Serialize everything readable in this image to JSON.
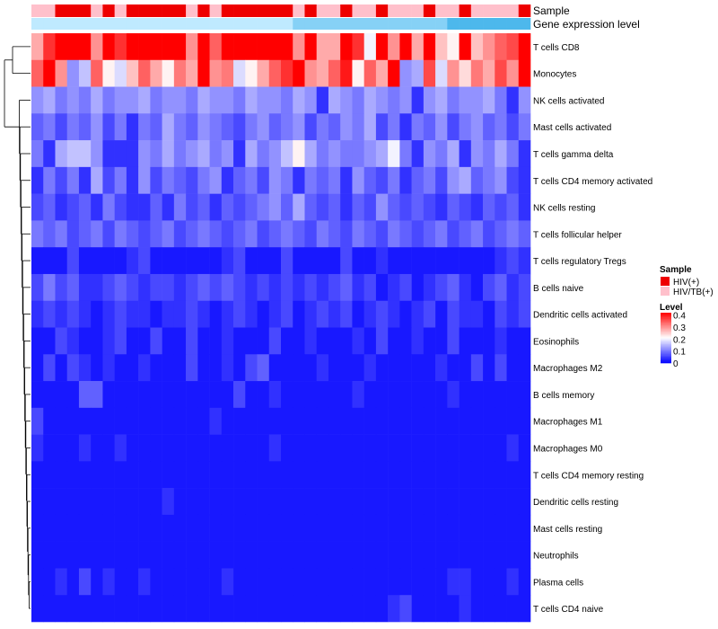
{
  "chart_data": {
    "type": "heatmap",
    "title": "",
    "annotation_tracks": [
      "Sample",
      "Gene expression level"
    ],
    "row_labels": [
      "T cells CD8",
      "Monocytes",
      "NK cells activated",
      "Mast cells activated",
      "T cells gamma delta",
      "T cells CD4 memory activated",
      "NK cells resting",
      "T cells follicular helper",
      "T cells regulatory  Tregs",
      "B cells naive",
      "Dendritic cells activated",
      "Eosinophils",
      "Macrophages M2",
      "B cells memory",
      "Macrophages M1",
      "Macrophages M0",
      "T cells CD4 memory resting",
      "Dendritic cells resting",
      "Mast cells resting",
      "Neutrophils",
      "Plasma cells",
      "T cells CD4 naive"
    ],
    "n_samples": 42,
    "sample_groups": [
      "HIV/TB(+)",
      "HIV/TB(+)",
      "HIV(+)",
      "HIV(+)",
      "HIV(+)",
      "HIV/TB(+)",
      "HIV(+)",
      "HIV/TB(+)",
      "HIV(+)",
      "HIV(+)",
      "HIV(+)",
      "HIV(+)",
      "HIV(+)",
      "HIV/TB(+)",
      "HIV(+)",
      "HIV/TB(+)",
      "HIV(+)",
      "HIV(+)",
      "HIV(+)",
      "HIV(+)",
      "HIV(+)",
      "HIV(+)",
      "HIV/TB(+)",
      "HIV(+)",
      "HIV/TB(+)",
      "HIV/TB(+)",
      "HIV(+)",
      "HIV/TB(+)",
      "HIV/TB(+)",
      "HIV(+)",
      "HIV/TB(+)",
      "HIV/TB(+)",
      "HIV/TB(+)",
      "HIV(+)",
      "HIV/TB(+)",
      "HIV/TB(+)",
      "HIV(+)",
      "HIV/TB(+)",
      "HIV/TB(+)",
      "HIV/TB(+)",
      "HIV/TB(+)",
      "HIV(+)"
    ],
    "gene_expression_level_track": [
      0.05,
      0.05,
      0.05,
      0.05,
      0.05,
      0.05,
      0.05,
      0.05,
      0.05,
      0.05,
      0.05,
      0.05,
      0.05,
      0.05,
      0.05,
      0.05,
      0.05,
      0.05,
      0.05,
      0.05,
      0.05,
      0.05,
      0.1,
      0.1,
      0.1,
      0.1,
      0.1,
      0.1,
      0.1,
      0.1,
      0.1,
      0.1,
      0.1,
      0.1,
      0.1,
      0.15,
      0.15,
      0.15,
      0.15,
      0.15,
      0.15,
      0.15
    ],
    "legend": {
      "sample_title": "Sample",
      "sample_items": [
        {
          "label": "HIV(+)",
          "color": "#ee0000"
        },
        {
          "label": "HIV/TB(+)",
          "color": "#ffc0cb"
        }
      ],
      "level_title": "Level",
      "level_ticks": [
        "0.4",
        "0.3",
        "0.2",
        "0.1",
        "0"
      ],
      "level_min": 0,
      "level_max": 0.42
    },
    "colors": {
      "low": "#0000ff",
      "mid": "#ffffff",
      "high": "#ff0000",
      "track_low": "#bfeaff",
      "track_high": "#4db8ec"
    },
    "values": [
      [
        0.28,
        0.38,
        0.42,
        0.42,
        0.42,
        0.3,
        0.42,
        0.38,
        0.42,
        0.42,
        0.42,
        0.42,
        0.42,
        0.3,
        0.42,
        0.34,
        0.42,
        0.42,
        0.42,
        0.42,
        0.42,
        0.42,
        0.3,
        0.42,
        0.28,
        0.28,
        0.42,
        0.38,
        0.2,
        0.42,
        0.3,
        0.42,
        0.28,
        0.42,
        0.26,
        0.22,
        0.42,
        0.26,
        0.3,
        0.34,
        0.36,
        0.42
      ],
      [
        0.34,
        0.42,
        0.3,
        0.12,
        0.16,
        0.34,
        0.22,
        0.18,
        0.26,
        0.34,
        0.28,
        0.22,
        0.32,
        0.28,
        0.42,
        0.3,
        0.32,
        0.18,
        0.22,
        0.28,
        0.34,
        0.38,
        0.42,
        0.3,
        0.28,
        0.34,
        0.4,
        0.22,
        0.34,
        0.28,
        0.42,
        0.12,
        0.14,
        0.36,
        0.18,
        0.3,
        0.24,
        0.32,
        0.28,
        0.36,
        0.3,
        0.42
      ],
      [
        0.12,
        0.14,
        0.1,
        0.12,
        0.1,
        0.14,
        0.1,
        0.12,
        0.12,
        0.14,
        0.1,
        0.12,
        0.12,
        0.1,
        0.14,
        0.12,
        0.12,
        0.1,
        0.14,
        0.12,
        0.12,
        0.1,
        0.14,
        0.12,
        0.04,
        0.14,
        0.12,
        0.1,
        0.14,
        0.12,
        0.1,
        0.12,
        0.04,
        0.12,
        0.14,
        0.1,
        0.12,
        0.12,
        0.14,
        0.1,
        0.04,
        0.12
      ],
      [
        0.08,
        0.1,
        0.06,
        0.1,
        0.08,
        0.12,
        0.06,
        0.1,
        0.04,
        0.1,
        0.08,
        0.14,
        0.1,
        0.08,
        0.12,
        0.1,
        0.08,
        0.06,
        0.1,
        0.12,
        0.08,
        0.1,
        0.12,
        0.06,
        0.1,
        0.08,
        0.12,
        0.1,
        0.14,
        0.06,
        0.1,
        0.04,
        0.1,
        0.08,
        0.12,
        0.06,
        0.1,
        0.12,
        0.08,
        0.1,
        0.06,
        0.1
      ],
      [
        0.1,
        0.04,
        0.14,
        0.16,
        0.16,
        0.12,
        0.04,
        0.04,
        0.04,
        0.12,
        0.1,
        0.14,
        0.1,
        0.12,
        0.14,
        0.1,
        0.12,
        0.04,
        0.14,
        0.1,
        0.12,
        0.16,
        0.22,
        0.14,
        0.1,
        0.12,
        0.1,
        0.1,
        0.12,
        0.14,
        0.2,
        0.1,
        0.04,
        0.12,
        0.1,
        0.14,
        0.04,
        0.12,
        0.1,
        0.14,
        0.1,
        0.04
      ],
      [
        0.04,
        0.1,
        0.06,
        0.1,
        0.04,
        0.14,
        0.06,
        0.1,
        0.04,
        0.12,
        0.06,
        0.1,
        0.08,
        0.06,
        0.1,
        0.12,
        0.04,
        0.08,
        0.1,
        0.06,
        0.12,
        0.1,
        0.04,
        0.1,
        0.08,
        0.1,
        0.04,
        0.12,
        0.08,
        0.06,
        0.1,
        0.04,
        0.08,
        0.1,
        0.06,
        0.12,
        0.14,
        0.08,
        0.1,
        0.12,
        0.06,
        0.04
      ],
      [
        0.06,
        0.08,
        0.04,
        0.06,
        0.08,
        0.04,
        0.1,
        0.06,
        0.04,
        0.04,
        0.08,
        0.04,
        0.1,
        0.06,
        0.08,
        0.04,
        0.08,
        0.06,
        0.08,
        0.1,
        0.12,
        0.08,
        0.14,
        0.08,
        0.06,
        0.08,
        0.04,
        0.08,
        0.06,
        0.12,
        0.08,
        0.06,
        0.08,
        0.06,
        0.04,
        0.08,
        0.06,
        0.04,
        0.08,
        0.06,
        0.08,
        0.04
      ],
      [
        0.1,
        0.08,
        0.1,
        0.06,
        0.08,
        0.1,
        0.06,
        0.1,
        0.08,
        0.06,
        0.08,
        0.1,
        0.06,
        0.08,
        0.1,
        0.08,
        0.06,
        0.08,
        0.1,
        0.06,
        0.08,
        0.1,
        0.08,
        0.06,
        0.1,
        0.08,
        0.06,
        0.1,
        0.08,
        0.06,
        0.1,
        0.08,
        0.06,
        0.08,
        0.1,
        0.06,
        0.08,
        0.1,
        0.06,
        0.08,
        0.1,
        0.08
      ],
      [
        0.02,
        0.02,
        0.02,
        0.06,
        0.02,
        0.02,
        0.02,
        0.02,
        0.04,
        0.06,
        0.02,
        0.02,
        0.02,
        0.02,
        0.02,
        0.02,
        0.04,
        0.06,
        0.02,
        0.02,
        0.02,
        0.06,
        0.02,
        0.02,
        0.02,
        0.02,
        0.06,
        0.02,
        0.02,
        0.04,
        0.02,
        0.02,
        0.02,
        0.02,
        0.02,
        0.02,
        0.02,
        0.02,
        0.02,
        0.04,
        0.06,
        0.04
      ],
      [
        0.06,
        0.1,
        0.06,
        0.08,
        0.04,
        0.04,
        0.06,
        0.08,
        0.06,
        0.04,
        0.06,
        0.06,
        0.04,
        0.06,
        0.08,
        0.06,
        0.08,
        0.06,
        0.04,
        0.06,
        0.04,
        0.06,
        0.04,
        0.06,
        0.04,
        0.06,
        0.08,
        0.04,
        0.06,
        0.02,
        0.04,
        0.06,
        0.02,
        0.04,
        0.06,
        0.08,
        0.04,
        0.02,
        0.06,
        0.08,
        0.04,
        0.06
      ],
      [
        0.04,
        0.06,
        0.04,
        0.06,
        0.04,
        0.02,
        0.04,
        0.06,
        0.04,
        0.04,
        0.02,
        0.04,
        0.04,
        0.06,
        0.04,
        0.02,
        0.04,
        0.06,
        0.04,
        0.02,
        0.04,
        0.06,
        0.02,
        0.04,
        0.06,
        0.04,
        0.06,
        0.02,
        0.04,
        0.06,
        0.04,
        0.02,
        0.04,
        0.06,
        0.02,
        0.06,
        0.04,
        0.04,
        0.02,
        0.06,
        0.04,
        0.06
      ],
      [
        0.02,
        0.02,
        0.06,
        0.04,
        0.02,
        0.02,
        0.04,
        0.06,
        0.02,
        0.02,
        0.06,
        0.02,
        0.02,
        0.06,
        0.02,
        0.02,
        0.04,
        0.02,
        0.02,
        0.02,
        0.06,
        0.02,
        0.02,
        0.04,
        0.02,
        0.02,
        0.02,
        0.04,
        0.02,
        0.06,
        0.02,
        0.02,
        0.04,
        0.02,
        0.02,
        0.06,
        0.02,
        0.02,
        0.02,
        0.04,
        0.02,
        0.02
      ],
      [
        0.02,
        0.06,
        0.02,
        0.06,
        0.04,
        0.02,
        0.04,
        0.02,
        0.02,
        0.04,
        0.02,
        0.02,
        0.02,
        0.06,
        0.02,
        0.02,
        0.04,
        0.02,
        0.06,
        0.08,
        0.02,
        0.02,
        0.02,
        0.02,
        0.04,
        0.02,
        0.02,
        0.02,
        0.04,
        0.02,
        0.02,
        0.02,
        0.02,
        0.02,
        0.04,
        0.02,
        0.02,
        0.06,
        0.02,
        0.06,
        0.02,
        0.02
      ],
      [
        0.02,
        0.02,
        0.02,
        0.02,
        0.08,
        0.08,
        0.02,
        0.02,
        0.02,
        0.02,
        0.02,
        0.02,
        0.02,
        0.02,
        0.02,
        0.02,
        0.02,
        0.06,
        0.02,
        0.02,
        0.04,
        0.02,
        0.02,
        0.02,
        0.02,
        0.02,
        0.02,
        0.04,
        0.02,
        0.02,
        0.02,
        0.02,
        0.02,
        0.02,
        0.02,
        0.04,
        0.02,
        0.02,
        0.02,
        0.02,
        0.02,
        0.02
      ],
      [
        0.06,
        0.02,
        0.02,
        0.02,
        0.02,
        0.02,
        0.02,
        0.02,
        0.02,
        0.02,
        0.02,
        0.02,
        0.02,
        0.02,
        0.02,
        0.04,
        0.02,
        0.02,
        0.02,
        0.02,
        0.02,
        0.02,
        0.02,
        0.02,
        0.02,
        0.02,
        0.02,
        0.02,
        0.02,
        0.02,
        0.02,
        0.02,
        0.02,
        0.02,
        0.02,
        0.02,
        0.02,
        0.02,
        0.02,
        0.02,
        0.02,
        0.02
      ],
      [
        0.04,
        0.02,
        0.02,
        0.02,
        0.04,
        0.02,
        0.02,
        0.04,
        0.02,
        0.02,
        0.02,
        0.02,
        0.02,
        0.02,
        0.02,
        0.02,
        0.02,
        0.02,
        0.02,
        0.02,
        0.04,
        0.02,
        0.02,
        0.02,
        0.02,
        0.02,
        0.02,
        0.02,
        0.02,
        0.02,
        0.02,
        0.02,
        0.02,
        0.02,
        0.02,
        0.02,
        0.02,
        0.02,
        0.02,
        0.02,
        0.04,
        0.02
      ],
      [
        0.02,
        0.02,
        0.02,
        0.02,
        0.02,
        0.02,
        0.02,
        0.02,
        0.02,
        0.02,
        0.02,
        0.02,
        0.02,
        0.02,
        0.02,
        0.02,
        0.02,
        0.02,
        0.02,
        0.02,
        0.02,
        0.02,
        0.02,
        0.02,
        0.02,
        0.02,
        0.02,
        0.02,
        0.02,
        0.02,
        0.02,
        0.02,
        0.02,
        0.02,
        0.02,
        0.02,
        0.02,
        0.02,
        0.02,
        0.02,
        0.02,
        0.02
      ],
      [
        0.02,
        0.02,
        0.02,
        0.02,
        0.02,
        0.02,
        0.02,
        0.02,
        0.02,
        0.02,
        0.02,
        0.04,
        0.02,
        0.02,
        0.02,
        0.02,
        0.02,
        0.02,
        0.02,
        0.02,
        0.02,
        0.02,
        0.02,
        0.02,
        0.02,
        0.02,
        0.02,
        0.02,
        0.02,
        0.02,
        0.02,
        0.02,
        0.02,
        0.02,
        0.02,
        0.02,
        0.02,
        0.02,
        0.02,
        0.02,
        0.02,
        0.02
      ],
      [
        0.02,
        0.02,
        0.02,
        0.02,
        0.02,
        0.02,
        0.02,
        0.02,
        0.02,
        0.02,
        0.02,
        0.02,
        0.02,
        0.02,
        0.02,
        0.02,
        0.02,
        0.02,
        0.02,
        0.02,
        0.02,
        0.02,
        0.02,
        0.02,
        0.02,
        0.02,
        0.02,
        0.02,
        0.02,
        0.02,
        0.02,
        0.02,
        0.02,
        0.02,
        0.02,
        0.02,
        0.02,
        0.02,
        0.02,
        0.02,
        0.02,
        0.02
      ],
      [
        0.02,
        0.02,
        0.02,
        0.02,
        0.02,
        0.02,
        0.02,
        0.02,
        0.02,
        0.02,
        0.02,
        0.02,
        0.02,
        0.02,
        0.02,
        0.02,
        0.02,
        0.02,
        0.02,
        0.02,
        0.02,
        0.02,
        0.02,
        0.02,
        0.02,
        0.02,
        0.02,
        0.02,
        0.02,
        0.02,
        0.02,
        0.02,
        0.02,
        0.02,
        0.02,
        0.02,
        0.02,
        0.02,
        0.02,
        0.02,
        0.02,
        0.02
      ],
      [
        0.02,
        0.02,
        0.04,
        0.02,
        0.06,
        0.02,
        0.04,
        0.02,
        0.02,
        0.04,
        0.02,
        0.02,
        0.02,
        0.02,
        0.02,
        0.02,
        0.04,
        0.02,
        0.02,
        0.02,
        0.02,
        0.02,
        0.02,
        0.02,
        0.02,
        0.02,
        0.02,
        0.02,
        0.02,
        0.02,
        0.02,
        0.02,
        0.02,
        0.02,
        0.02,
        0.04,
        0.04,
        0.02,
        0.02,
        0.02,
        0.04,
        0.02
      ],
      [
        0.02,
        0.02,
        0.02,
        0.02,
        0.02,
        0.02,
        0.02,
        0.02,
        0.02,
        0.02,
        0.02,
        0.02,
        0.02,
        0.02,
        0.02,
        0.02,
        0.02,
        0.02,
        0.02,
        0.02,
        0.02,
        0.02,
        0.02,
        0.02,
        0.02,
        0.02,
        0.02,
        0.02,
        0.02,
        0.02,
        0.04,
        0.06,
        0.02,
        0.02,
        0.02,
        0.02,
        0.04,
        0.02,
        0.02,
        0.02,
        0.02,
        0.02
      ]
    ]
  }
}
